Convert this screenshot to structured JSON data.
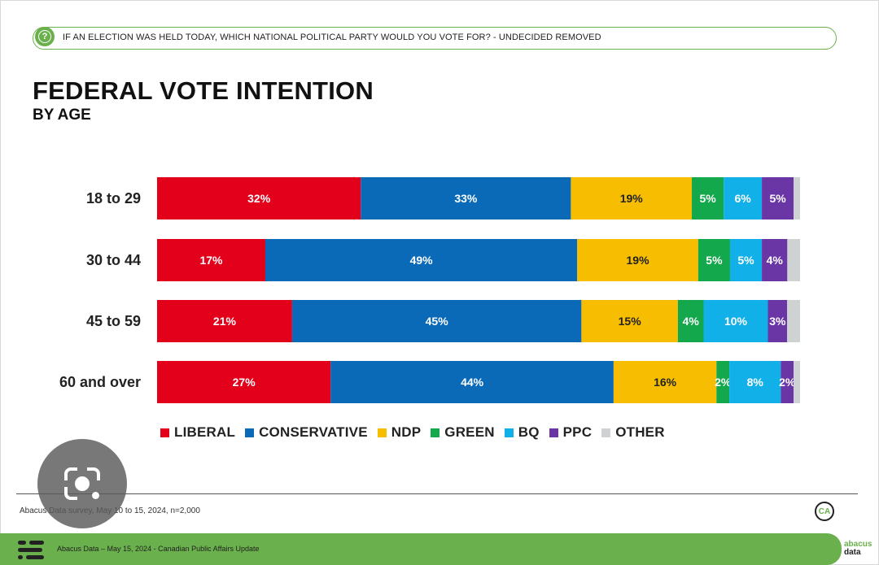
{
  "header": {
    "question_icon": "question-circle-icon",
    "question_icon_glyph": "?",
    "question": "IF AN ELECTION WAS HELD TODAY, WHICH NATIONAL POLITICAL PARTY WOULD YOU VOTE FOR? - UNDECIDED REMOVED"
  },
  "chart_data": {
    "type": "bar",
    "orientation": "horizontal",
    "stacked": true,
    "title": "FEDERAL VOTE INTENTION",
    "subtitle": "BY AGE",
    "categories": [
      "18 to 29",
      "30 to 44",
      "45 to 59",
      "60 and over"
    ],
    "series": [
      {
        "name": "LIBERAL",
        "color": "#e3001b",
        "values": [
          32,
          17,
          21,
          27
        ]
      },
      {
        "name": "CONSERVATIVE",
        "color": "#0a6ab8",
        "values": [
          33,
          49,
          45,
          44
        ]
      },
      {
        "name": "NDP",
        "color": "#f7bd00",
        "values": [
          19,
          19,
          15,
          16
        ]
      },
      {
        "name": "GREEN",
        "color": "#13a84b",
        "values": [
          5,
          5,
          4,
          2
        ]
      },
      {
        "name": "BQ",
        "color": "#12b0e8",
        "values": [
          6,
          5,
          10,
          8
        ]
      },
      {
        "name": "PPC",
        "color": "#6a35a5",
        "values": [
          5,
          4,
          3,
          2
        ]
      },
      {
        "name": "OTHER",
        "color": "#cfd2d3",
        "values": [
          1,
          2,
          2,
          1
        ]
      }
    ],
    "value_suffix": "%",
    "xlim": [
      0,
      100
    ],
    "legend_position": "bottom"
  },
  "footer": {
    "source": "Abacus Data survey, May 10 to 15, 2024, n=2,000",
    "ca_logo": "CA",
    "bottom_text": "Abacus Data – May 15, 2024 - Canadian Public Affairs Update",
    "brand_line1": "abacus",
    "brand_line2": "data",
    "lens_icon": "google-lens-icon"
  }
}
